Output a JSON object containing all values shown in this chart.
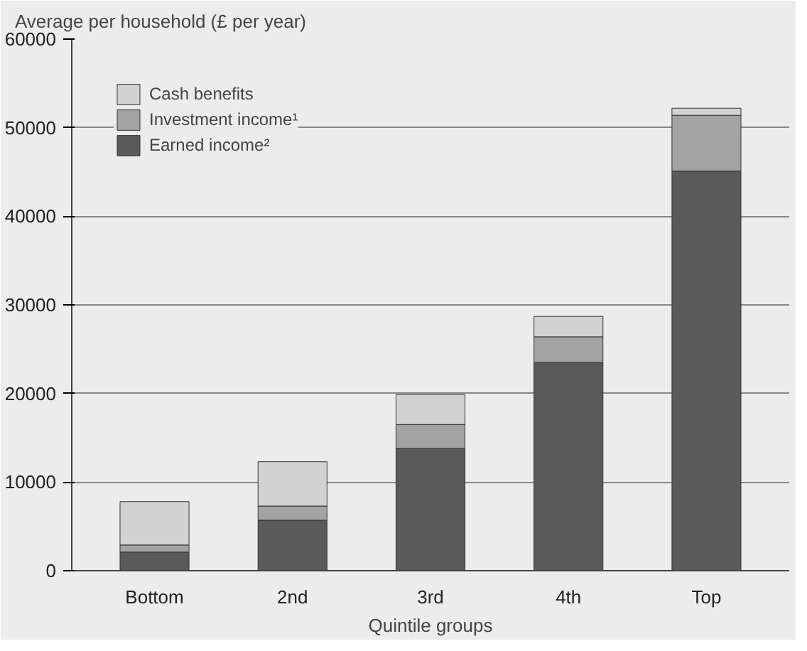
{
  "chart_data": {
    "type": "bar",
    "stacked": true,
    "ylabel": "Average per household (£ per year)",
    "xlabel": "Quintile groups",
    "categories": [
      "Bottom",
      "2nd",
      "3rd",
      "4th",
      "Top"
    ],
    "series": [
      {
        "name": "Earned income²",
        "color": "#5a5a5a",
        "values": [
          2100,
          5700,
          13800,
          23500,
          45100
        ]
      },
      {
        "name": "Investment income¹",
        "color": "#a3a3a3",
        "values": [
          800,
          1600,
          2700,
          2900,
          6300
        ]
      },
      {
        "name": "Cash benefits",
        "color": "#d2d2d2",
        "values": [
          4900,
          5000,
          3400,
          2300,
          800
        ]
      }
    ],
    "ylim": [
      0,
      60000
    ],
    "yticks": [
      0,
      10000,
      20000,
      30000,
      40000,
      50000,
      60000
    ],
    "grid": "y",
    "legend": "top left"
  }
}
